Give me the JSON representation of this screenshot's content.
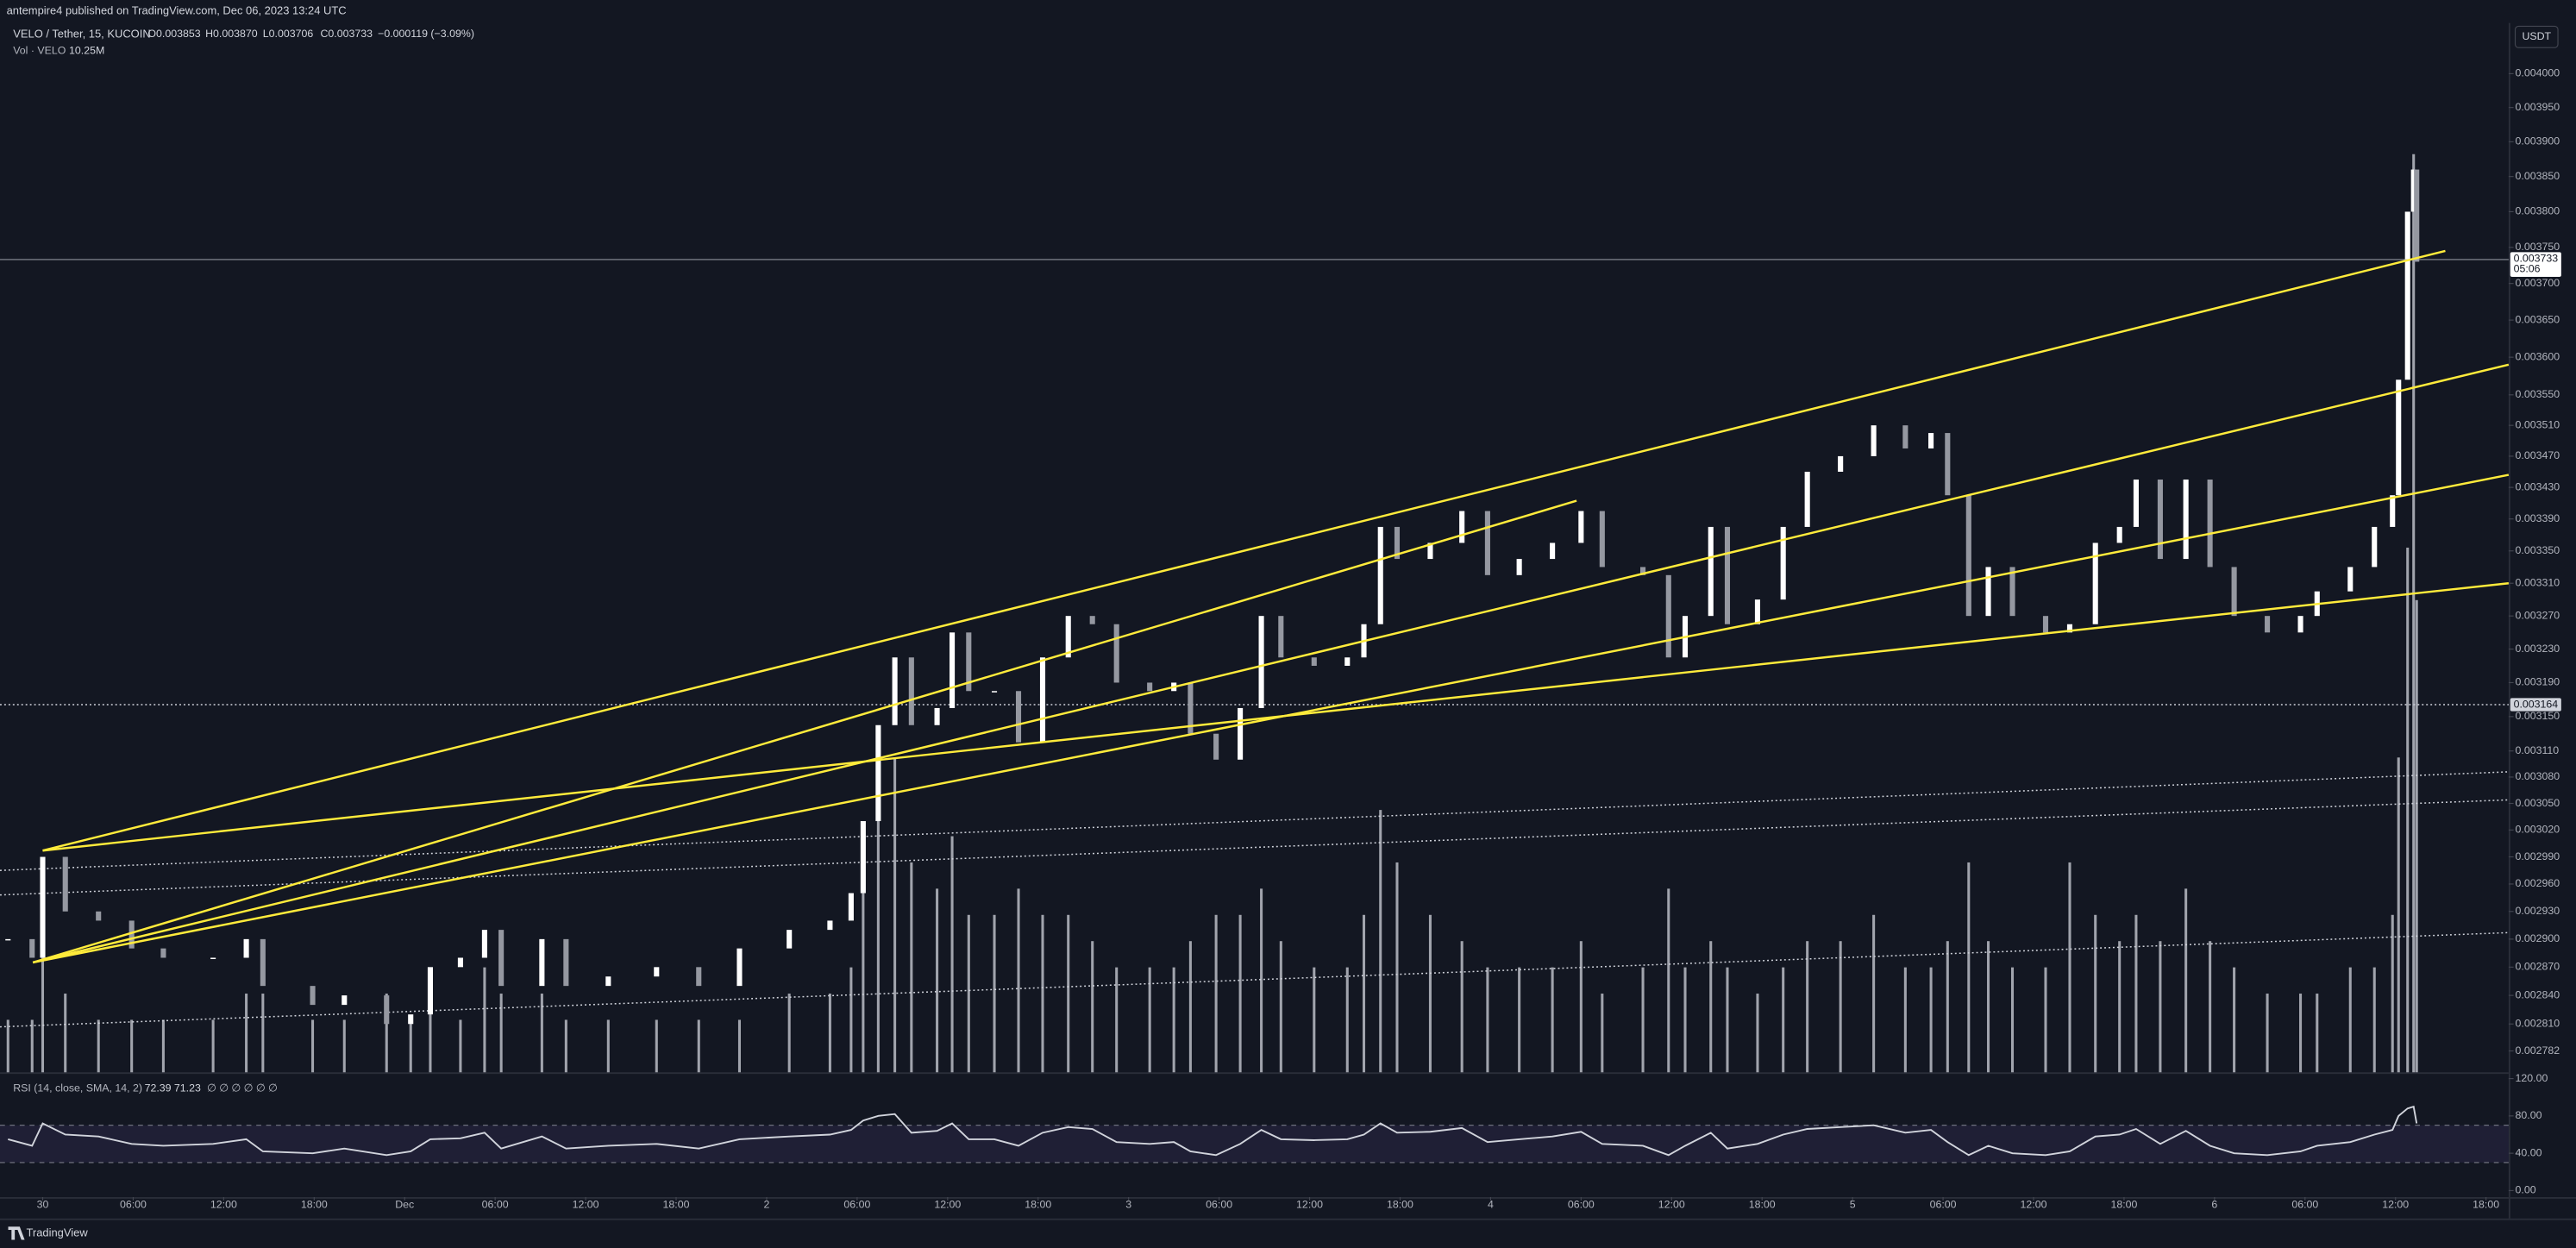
{
  "chart_data": {
    "type": "candlestick",
    "header": "antempire4 published on TradingView.com, Dec 06, 2023 13:24 UTC",
    "symbol": "VELO / Tether, 15, KUCOIN",
    "ohlc": [
      "O0.003853",
      "H0.003870",
      "L0.003706",
      "C0.003733"
    ],
    "change": "−0.000119 (−3.09%)",
    "volume_label": "Vol · VELO",
    "volume_value": "10.25M",
    "rsi_label": "RSI (14, close, SMA, 14, 2)",
    "rsi_values": [
      "72.39",
      "71.23"
    ],
    "rsi_empty": "∅ ∅ ∅ ∅ ∅ ∅",
    "currency": "USDT",
    "brand": "TradingView",
    "log_scale": true,
    "color": "#ffffff",
    "down_color": "#9598a1",
    "line_color": "#ffeb3b",
    "x": [
      -2.3,
      -0.7,
      0,
      1.5,
      3.7,
      5.9,
      8,
      11.3,
      13.5,
      14.6,
      17.9,
      20,
      22.8,
      24.4,
      25.7,
      27.7,
      29.3,
      30.4,
      33.1,
      34.7,
      37.5,
      40.7,
      43.5,
      46.2,
      49.5,
      52.2,
      53.6,
      54.4,
      55.4,
      56.5,
      57.6,
      59.3,
      60.3,
      61.4,
      63.1,
      64.7,
      66.3,
      68,
      69.6,
      71.2,
      73.4,
      75,
      76.1,
      77.8,
      79.4,
      80.8,
      82.1,
      84.3,
      86.5,
      87.6,
      88.7,
      89.8,
      92,
      94.1,
      95.8,
      97.9,
      100.1,
      102,
      103.4,
      106.1,
      107.8,
      108.9,
      110.6,
      111.7,
      113.7,
      115.4,
      117,
      119.2,
      121.4,
      123.5,
      125.2,
      126.3,
      127.7,
      129,
      130.6,
      132.8,
      134.4,
      136.1,
      137.7,
      138.8,
      140.4,
      142.1,
      143.7,
      145.3,
      147.5,
      149.7,
      150.8,
      153,
      154.6,
      155.8,
      156.2,
      156.8,
      157.2,
      157.4
    ],
    "values": [
      0.0029,
      0.00288,
      0.00299,
      0.00293,
      0.00292,
      0.00289,
      0.00288,
      0.00288,
      0.0029,
      0.00285,
      0.00283,
      0.00284,
      0.00281,
      0.00282,
      0.00287,
      0.00288,
      0.00291,
      0.00285,
      0.0029,
      0.00285,
      0.00286,
      0.00287,
      0.00285,
      0.00289,
      0.00291,
      0.00292,
      0.00295,
      0.00303,
      0.00314,
      0.00322,
      0.00314,
      0.00316,
      0.00325,
      0.00318,
      0.00318,
      0.00312,
      0.00322,
      0.00327,
      0.00326,
      0.00319,
      0.00318,
      0.00319,
      0.00313,
      0.0031,
      0.00316,
      0.00327,
      0.00322,
      0.00321,
      0.00322,
      0.00326,
      0.00338,
      0.00334,
      0.00336,
      0.0034,
      0.00332,
      0.00334,
      0.00336,
      0.0034,
      0.00333,
      0.00332,
      0.00322,
      0.00327,
      0.00338,
      0.00326,
      0.00329,
      0.00338,
      0.00345,
      0.00347,
      0.00351,
      0.00348,
      0.0035,
      0.00342,
      0.00327,
      0.00333,
      0.00327,
      0.00325,
      0.00326,
      0.00336,
      0.00338,
      0.00344,
      0.00334,
      0.00344,
      0.00333,
      0.00327,
      0.00325,
      0.00327,
      0.0033,
      0.00333,
      0.00338,
      0.00342,
      0.00357,
      0.0038,
      0.00386,
      0.00373
    ],
    "volume": [
      2,
      2,
      5,
      3,
      2,
      2,
      2,
      2,
      3,
      3,
      2,
      2,
      3,
      2,
      3,
      2,
      4,
      3,
      3,
      2,
      2,
      2,
      2,
      2,
      3,
      3,
      4,
      8,
      10,
      12,
      8,
      7,
      9,
      6,
      6,
      7,
      6,
      6,
      5,
      4,
      4,
      4,
      5,
      6,
      6,
      7,
      5,
      4,
      4,
      6,
      10,
      8,
      6,
      5,
      4,
      4,
      4,
      5,
      3,
      4,
      7,
      4,
      5,
      4,
      3,
      4,
      5,
      5,
      6,
      4,
      4,
      5,
      8,
      5,
      4,
      4,
      8,
      6,
      5,
      6,
      5,
      7,
      5,
      4,
      3,
      3,
      3,
      4,
      4,
      6,
      12,
      20,
      35,
      18
    ],
    "volume_lim": [
      0,
      40
    ],
    "rsi": [
      55,
      48,
      72,
      60,
      58,
      50,
      48,
      50,
      55,
      42,
      40,
      45,
      38,
      42,
      55,
      56,
      62,
      45,
      58,
      45,
      48,
      50,
      45,
      55,
      58,
      60,
      65,
      75,
      80,
      82,
      62,
      64,
      72,
      55,
      55,
      48,
      62,
      68,
      66,
      52,
      50,
      52,
      42,
      38,
      50,
      65,
      55,
      54,
      55,
      60,
      72,
      62,
      63,
      67,
      52,
      55,
      58,
      63,
      50,
      48,
      38,
      48,
      62,
      45,
      50,
      60,
      66,
      68,
      70,
      62,
      65,
      52,
      38,
      48,
      40,
      38,
      42,
      58,
      60,
      66,
      50,
      64,
      48,
      40,
      38,
      42,
      48,
      52,
      60,
      65,
      80,
      88,
      90,
      72
    ],
    "rsi_lim": [
      -7,
      125
    ],
    "rsi_band": [
      30,
      70
    ],
    "rsi_ticks": [
      {
        "value": 120,
        "label": "120.00"
      },
      {
        "value": 80,
        "label": "80.00"
      },
      {
        "value": 40,
        "label": "40.00"
      },
      {
        "value": 0,
        "label": "0.00"
      }
    ],
    "xlim": [
      -2.83,
      163.5
    ],
    "xticks": [
      {
        "value": 0,
        "label": "30"
      },
      {
        "value": 6,
        "label": "06:00"
      },
      {
        "value": 12,
        "label": "12:00"
      },
      {
        "value": 18,
        "label": "18:00"
      },
      {
        "value": 24,
        "label": "Dec"
      },
      {
        "value": 30,
        "label": "06:00"
      },
      {
        "value": 36,
        "label": "12:00"
      },
      {
        "value": 42,
        "label": "18:00"
      },
      {
        "value": 48,
        "label": "2"
      },
      {
        "value": 54,
        "label": "06:00"
      },
      {
        "value": 60,
        "label": "12:00"
      },
      {
        "value": 66,
        "label": "18:00"
      },
      {
        "value": 72,
        "label": "3"
      },
      {
        "value": 78,
        "label": "06:00"
      },
      {
        "value": 84,
        "label": "12:00"
      },
      {
        "value": 90,
        "label": "18:00"
      },
      {
        "value": 96,
        "label": "4"
      },
      {
        "value": 102,
        "label": "06:00"
      },
      {
        "value": 108,
        "label": "12:00"
      },
      {
        "value": 114,
        "label": "18:00"
      },
      {
        "value": 120,
        "label": "5"
      },
      {
        "value": 126,
        "label": "06:00"
      },
      {
        "value": 132,
        "label": "12:00"
      },
      {
        "value": 138,
        "label": "18:00"
      },
      {
        "value": 144,
        "label": "6"
      },
      {
        "value": 150,
        "label": "06:00"
      },
      {
        "value": 156,
        "label": "12:00"
      },
      {
        "value": 162,
        "label": "18:00"
      }
    ],
    "ylim": [
      0.00276,
      0.004076
    ],
    "yticks": [
      {
        "value": 0.004,
        "label": "0.004000"
      },
      {
        "value": 0.00395,
        "label": "0.003950"
      },
      {
        "value": 0.0039,
        "label": "0.003900"
      },
      {
        "value": 0.00385,
        "label": "0.003850"
      },
      {
        "value": 0.0038,
        "label": "0.003800"
      },
      {
        "value": 0.00375,
        "label": "0.003750"
      },
      {
        "value": 0.0037,
        "label": "0.003700"
      },
      {
        "value": 0.00365,
        "label": "0.003650"
      },
      {
        "value": 0.0036,
        "label": "0.003600"
      },
      {
        "value": 0.00355,
        "label": "0.003550"
      },
      {
        "value": 0.00351,
        "label": "0.003510"
      },
      {
        "value": 0.00347,
        "label": "0.003470"
      },
      {
        "value": 0.00343,
        "label": "0.003430"
      },
      {
        "value": 0.00339,
        "label": "0.003390"
      },
      {
        "value": 0.00335,
        "label": "0.003350"
      },
      {
        "value": 0.00331,
        "label": "0.003310"
      },
      {
        "value": 0.00327,
        "label": "0.003270"
      },
      {
        "value": 0.00323,
        "label": "0.003230"
      },
      {
        "value": 0.00319,
        "label": "0.003190"
      },
      {
        "value": 0.00315,
        "label": "0.003150"
      },
      {
        "value": 0.00311,
        "label": "0.003110"
      },
      {
        "value": 0.00308,
        "label": "0.003080"
      },
      {
        "value": 0.00305,
        "label": "0.003050"
      },
      {
        "value": 0.00302,
        "label": "0.003020"
      },
      {
        "value": 0.00299,
        "label": "0.002990"
      },
      {
        "value": 0.00296,
        "label": "0.002960"
      },
      {
        "value": 0.00293,
        "label": "0.002930"
      },
      {
        "value": 0.0029,
        "label": "0.002900"
      },
      {
        "value": 0.00287,
        "label": "0.002870"
      },
      {
        "value": 0.00284,
        "label": "0.002840"
      },
      {
        "value": 0.00281,
        "label": "0.002810"
      },
      {
        "value": 0.002782,
        "label": "0.002782"
      }
    ],
    "last_price": {
      "value": 0.003733,
      "label": "0.003733"
    },
    "countdown": "05:06",
    "level": {
      "value": 0.003164,
      "label": "0.003164"
    },
    "trend_lines": [
      {
        "x": [
          0,
          159.3
        ],
        "y": [
          0.002997,
          0.003745
        ]
      },
      {
        "x": [
          -0.65,
          163.5
        ],
        "y": [
          0.002875,
          0.00359
        ]
      },
      {
        "x": [
          -0.65,
          163.5
        ],
        "y": [
          0.002875,
          0.003446
        ]
      },
      {
        "x": [
          0,
          163.5
        ],
        "y": [
          0.002997,
          0.00331
        ]
      },
      {
        "x": [
          -0.65,
          101.7
        ],
        "y": [
          0.002875,
          0.003413
        ]
      }
    ],
    "dotted_lines": [
      {
        "x": [
          -2.83,
          163.5
        ],
        "y": [
          0.002975,
          0.003086
        ]
      },
      {
        "x": [
          -2.83,
          163.5
        ],
        "y": [
          0.002948,
          0.003054
        ]
      },
      {
        "x": [
          -2.83,
          163.5
        ],
        "y": [
          0.002807,
          0.002907
        ]
      }
    ]
  }
}
